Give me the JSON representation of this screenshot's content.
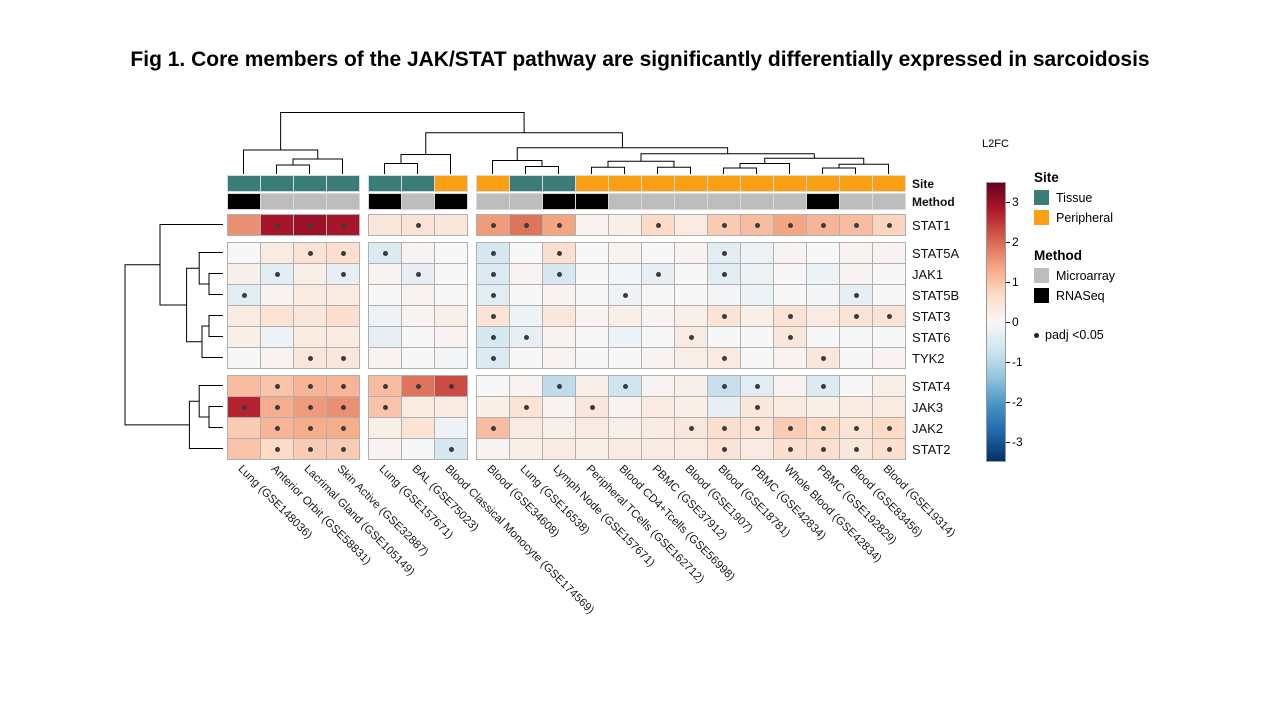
{
  "title": "Fig 1. Core members of the JAK/STAT pathway are significantly differentially expressed in sarcoidosis",
  "annotation_labels": {
    "site": "Site",
    "method": "Method"
  },
  "colorbar": {
    "label": "L2FC",
    "ticks": [
      3,
      2,
      1,
      0,
      -1,
      -2,
      -3
    ],
    "domain": [
      -3.5,
      3.5
    ],
    "palette": [
      "#053061",
      "#2166ac",
      "#4393c3",
      "#92c5de",
      "#d1e5f0",
      "#f7f7f7",
      "#fddbc7",
      "#f4a582",
      "#d6604d",
      "#b2182b",
      "#67001f"
    ]
  },
  "legend": {
    "site": {
      "title": "Site",
      "items": [
        {
          "label": "Tissue",
          "color": "#3a7c78"
        },
        {
          "label": "Peripheral",
          "color": "#fba012"
        }
      ]
    },
    "method": {
      "title": "Method",
      "items": [
        {
          "label": "Microarray",
          "color": "#bdbdbd"
        },
        {
          "label": "RNASeq",
          "color": "#000000"
        }
      ]
    },
    "significance": {
      "marker": "•",
      "label": "padj <0.05"
    }
  },
  "chart_data": {
    "type": "heatmap",
    "value_label": "L2FC",
    "rows": [
      "STAT1",
      "STAT5A",
      "JAK1",
      "STAT5B",
      "STAT3",
      "STAT6",
      "TYK2",
      "STAT4",
      "JAK3",
      "JAK2",
      "STAT2"
    ],
    "row_groups": [
      0,
      1,
      1,
      1,
      1,
      1,
      1,
      2,
      2,
      2,
      2
    ],
    "columns": [
      {
        "label": "Lung (GSE148036)",
        "site": "Tissue",
        "method": "RNASeq",
        "group": 0
      },
      {
        "label": "Anterior Orbit (GSE58831)",
        "site": "Tissue",
        "method": "Microarray",
        "group": 0
      },
      {
        "label": "Lacrimal Gland (GSE105149)",
        "site": "Tissue",
        "method": "Microarray",
        "group": 0
      },
      {
        "label": "Skin Active (GSE32887)",
        "site": "Tissue",
        "method": "Microarray",
        "group": 0
      },
      {
        "label": "Lung (GSE157671)",
        "site": "Tissue",
        "method": "RNASeq",
        "group": 1
      },
      {
        "label": "BAL (GSE75023)",
        "site": "Tissue",
        "method": "Microarray",
        "group": 1
      },
      {
        "label": "Blood Classical Monocyte (GSE174569)",
        "site": "Peripheral",
        "method": "RNASeq",
        "group": 1
      },
      {
        "label": "Blood (GSE34608)",
        "site": "Peripheral",
        "method": "Microarray",
        "group": 2
      },
      {
        "label": "Lung (GSE16538)",
        "site": "Tissue",
        "method": "Microarray",
        "group": 2
      },
      {
        "label": "Lymph Node (GSE157671)",
        "site": "Tissue",
        "method": "RNASeq",
        "group": 2
      },
      {
        "label": "Peripheral TCells (GSE162712)",
        "site": "Peripheral",
        "method": "RNASeq",
        "group": 2
      },
      {
        "label": "Blood CD4+Tcells (GSE56998)",
        "site": "Peripheral",
        "method": "Microarray",
        "group": 2
      },
      {
        "label": "PBMC (GSE37912)",
        "site": "Peripheral",
        "method": "Microarray",
        "group": 2
      },
      {
        "label": "Blood (GSE1907)",
        "site": "Peripheral",
        "method": "Microarray",
        "group": 2
      },
      {
        "label": "Blood (GSE18781)",
        "site": "Peripheral",
        "method": "Microarray",
        "group": 2
      },
      {
        "label": "PBMC (GSE42834)",
        "site": "Peripheral",
        "method": "Microarray",
        "group": 2
      },
      {
        "label": "Whole Blood (GSE42834)",
        "site": "Peripheral",
        "method": "Microarray",
        "group": 2
      },
      {
        "label": "PBMC (GSE192829)",
        "site": "Peripheral",
        "method": "RNASeq",
        "group": 2
      },
      {
        "label": "Blood (GSE83456)",
        "site": "Peripheral",
        "method": "Microarray",
        "group": 2
      },
      {
        "label": "Blood (GSE19314)",
        "site": "Peripheral",
        "method": "Microarray",
        "group": 2
      }
    ],
    "values": [
      [
        1.6,
        2.9,
        3.0,
        2.9,
        0.4,
        0.5,
        0.4,
        1.5,
        1.9,
        1.4,
        0.1,
        0.2,
        0.7,
        0.3,
        0.9,
        1.1,
        1.4,
        1.2,
        1.1,
        0.8
      ],
      [
        0.0,
        0.3,
        0.5,
        0.6,
        -0.5,
        0.1,
        0.0,
        -0.6,
        0.0,
        0.6,
        0.0,
        0.1,
        0.0,
        0.1,
        -0.4,
        -0.2,
        0.1,
        0.0,
        0.1,
        0.1
      ],
      [
        0.2,
        -0.4,
        0.2,
        -0.3,
        0.1,
        -0.3,
        0.0,
        -0.5,
        0.1,
        -0.6,
        0.0,
        -0.1,
        -0.3,
        0.0,
        -0.4,
        -0.2,
        0.0,
        -0.2,
        0.1,
        0.0
      ],
      [
        -0.4,
        0.1,
        0.3,
        0.3,
        0.0,
        0.1,
        0.0,
        -0.4,
        0.0,
        0.1,
        0.0,
        -0.2,
        0.0,
        0.0,
        -0.1,
        -0.2,
        0.0,
        -0.1,
        -0.3,
        0.0
      ],
      [
        0.3,
        0.5,
        0.4,
        0.6,
        -0.2,
        0.1,
        0.2,
        0.5,
        -0.2,
        0.4,
        0.1,
        0.2,
        0.1,
        0.2,
        0.5,
        0.2,
        0.5,
        0.3,
        0.5,
        0.5
      ],
      [
        0.2,
        -0.2,
        0.3,
        0.3,
        -0.3,
        0.0,
        0.1,
        -0.6,
        -0.3,
        0.1,
        0.0,
        -0.2,
        0.0,
        0.3,
        0.0,
        0.0,
        0.4,
        0.0,
        0.0,
        0.0
      ],
      [
        0.0,
        0.1,
        0.4,
        0.4,
        0.1,
        0.0,
        -0.1,
        -0.5,
        0.0,
        0.1,
        0.0,
        0.0,
        0.1,
        0.2,
        0.3,
        0.0,
        0.1,
        0.4,
        0.0,
        0.1
      ],
      [
        1.1,
        1.0,
        1.2,
        1.2,
        1.1,
        1.9,
        2.3,
        0.0,
        0.1,
        -0.9,
        0.2,
        -0.7,
        0.1,
        0.2,
        -0.8,
        -0.4,
        0.1,
        -0.5,
        0.0,
        0.2
      ],
      [
        2.7,
        1.3,
        1.5,
        1.6,
        1.0,
        0.3,
        0.3,
        0.2,
        0.5,
        0.1,
        0.4,
        0.1,
        0.3,
        0.2,
        -0.3,
        0.4,
        0.3,
        0.2,
        0.3,
        0.3
      ],
      [
        0.9,
        1.2,
        1.3,
        1.3,
        0.2,
        0.5,
        -0.2,
        1.1,
        0.3,
        0.2,
        0.3,
        0.2,
        0.3,
        0.4,
        0.6,
        0.5,
        0.9,
        0.7,
        0.5,
        0.7
      ],
      [
        1.0,
        0.7,
        0.9,
        0.9,
        0.1,
        0.0,
        -0.6,
        0.1,
        0.2,
        0.3,
        0.2,
        0.3,
        0.3,
        0.3,
        0.5,
        0.3,
        0.6,
        0.6,
        0.4,
        0.6
      ]
    ],
    "significant": [
      [
        0,
        1,
        1,
        1,
        0,
        1,
        0,
        1,
        1,
        1,
        0,
        0,
        1,
        0,
        1,
        1,
        1,
        1,
        1,
        1
      ],
      [
        0,
        0,
        1,
        1,
        1,
        0,
        0,
        1,
        0,
        1,
        0,
        0,
        0,
        0,
        1,
        0,
        0,
        0,
        0,
        0
      ],
      [
        0,
        1,
        0,
        1,
        0,
        1,
        0,
        1,
        0,
        1,
        0,
        0,
        1,
        0,
        1,
        0,
        0,
        0,
        0,
        0
      ],
      [
        1,
        0,
        0,
        0,
        0,
        0,
        0,
        1,
        0,
        0,
        0,
        1,
        0,
        0,
        0,
        0,
        0,
        0,
        1,
        0
      ],
      [
        0,
        0,
        0,
        0,
        0,
        0,
        0,
        1,
        0,
        0,
        0,
        0,
        0,
        0,
        1,
        0,
        1,
        0,
        1,
        1
      ],
      [
        0,
        0,
        0,
        0,
        0,
        0,
        0,
        1,
        1,
        0,
        0,
        0,
        0,
        1,
        0,
        0,
        1,
        0,
        0,
        0
      ],
      [
        0,
        0,
        1,
        1,
        0,
        0,
        0,
        1,
        0,
        0,
        0,
        0,
        0,
        0,
        1,
        0,
        0,
        1,
        0,
        0
      ],
      [
        0,
        1,
        1,
        1,
        1,
        1,
        1,
        0,
        0,
        1,
        0,
        1,
        0,
        0,
        1,
        1,
        0,
        1,
        0,
        0
      ],
      [
        1,
        1,
        1,
        1,
        1,
        0,
        0,
        0,
        1,
        0,
        1,
        0,
        0,
        0,
        0,
        1,
        0,
        0,
        0,
        0
      ],
      [
        0,
        1,
        1,
        1,
        0,
        0,
        0,
        1,
        0,
        0,
        0,
        0,
        0,
        1,
        1,
        1,
        1,
        1,
        1,
        1
      ],
      [
        0,
        1,
        1,
        1,
        0,
        0,
        1,
        0,
        0,
        0,
        0,
        0,
        0,
        0,
        1,
        0,
        1,
        1,
        1,
        1
      ]
    ],
    "column_dendrogram": [
      0.82,
      [
        0.32,
        0,
        [
          0.2,
          [
            0.12,
            1,
            2
          ],
          3
        ]
      ],
      [
        0.55,
        [
          0.26,
          [
            0.14,
            4,
            5
          ],
          6
        ],
        [
          0.35,
          [
            0.18,
            7,
            [
              0.1,
              8,
              9
            ]
          ],
          [
            0.27,
            [
              0.17,
              [
                0.09,
                10,
                11
              ],
              [
                0.09,
                12,
                13
              ]
            ],
            [
              0.21,
              [
                0.14,
                [
                  0.08,
                  14,
                  15
                ],
                16
              ],
              [
                0.13,
                [
                  0.08,
                  17,
                  18
                ],
                19
              ]
            ]
          ]
        ]
      ]
    ],
    "row_dendrogram": [
      0.7,
      [
        0.45,
        0,
        [
          0.26,
          [
            0.17,
            1,
            [
              0.1,
              2,
              3
            ]
          ],
          [
            0.15,
            [
              0.1,
              4,
              5
            ],
            6
          ]
        ]
      ],
      [
        0.24,
        [
          0.17,
          7,
          [
            0.1,
            8,
            9
          ]
        ],
        10
      ]
    ]
  }
}
